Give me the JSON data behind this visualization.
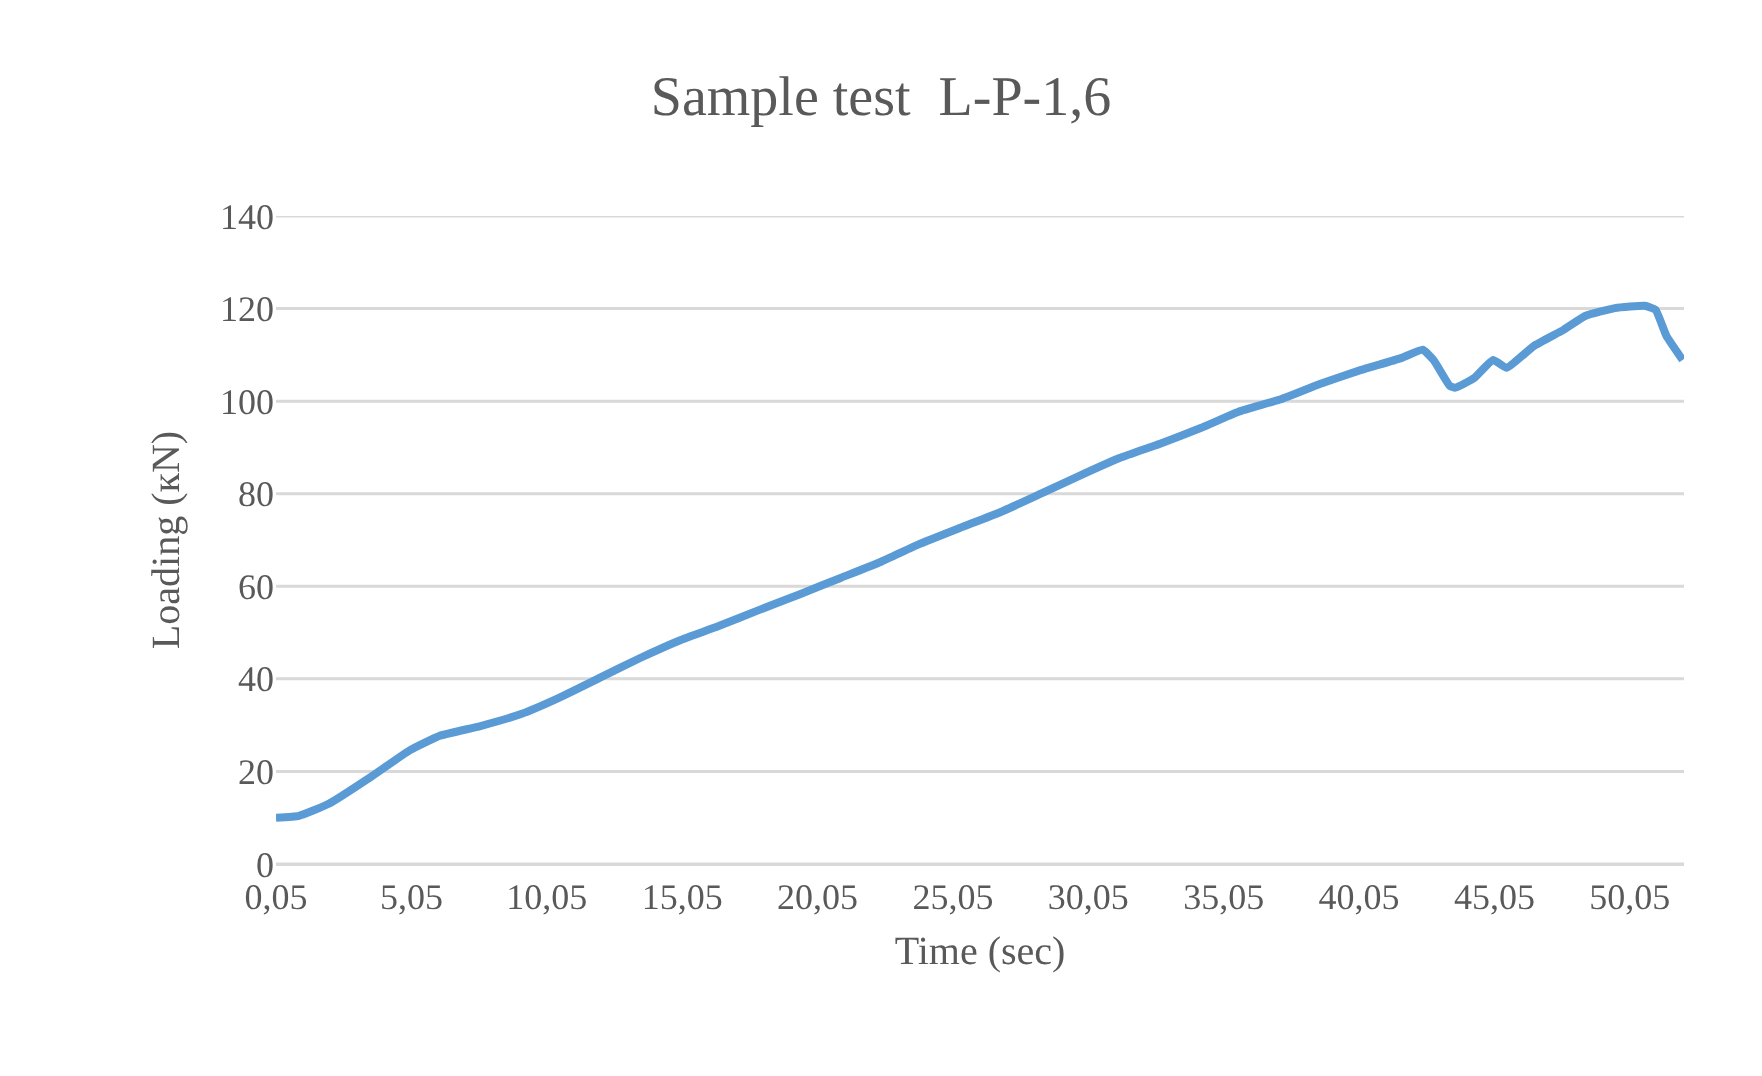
{
  "chart_data": {
    "type": "line",
    "title": "Sample test  L-P-1,6",
    "xlabel": "Time (sec)",
    "ylabel": "Loading (кN)",
    "x": [
      0.05,
      0.9,
      2.0,
      3.5,
      5.0,
      6.1,
      7.6,
      9.1,
      10.5,
      12.0,
      13.5,
      15.0,
      16.4,
      17.9,
      19.4,
      20.9,
      22.4,
      23.8,
      25.3,
      26.8,
      28.3,
      29.7,
      31.2,
      32.7,
      34.2,
      35.6,
      37.1,
      38.6,
      40.1,
      41.6,
      42.4,
      42.8,
      43.4,
      43.6,
      44.3,
      45.0,
      45.5,
      46.5,
      47.6,
      48.4,
      49.5,
      50.6,
      51.0,
      51.4,
      52.0
    ],
    "series": [
      {
        "color": "#5b9bd5",
        "values": [
          10,
          10.4,
          13,
          18.6,
          24.6,
          27.7,
          29.8,
          32.4,
          35.9,
          40.2,
          44.5,
          48.4,
          51.4,
          54.9,
          58.3,
          61.8,
          65.3,
          69.1,
          72.6,
          76,
          80,
          83.8,
          87.7,
          90.8,
          94.2,
          97.7,
          100.3,
          103.7,
          106.7,
          109.3,
          111.1,
          108.9,
          103.3,
          102.9,
          105,
          108.9,
          107.2,
          111.9,
          115.4,
          118.4,
          120.1,
          120.6,
          119.7,
          114.1,
          108.9
        ]
      }
    ],
    "xlim": [
      0.05,
      52.05
    ],
    "xticks": [
      {
        "value": 0.05,
        "label": "0,05"
      },
      {
        "value": 5.05,
        "label": "5,05"
      },
      {
        "value": 10.05,
        "label": "10,05"
      },
      {
        "value": 15.05,
        "label": "15,05"
      },
      {
        "value": 20.05,
        "label": "20,05"
      },
      {
        "value": 25.05,
        "label": "25,05"
      },
      {
        "value": 30.05,
        "label": "30,05"
      },
      {
        "value": 35.05,
        "label": "35,05"
      },
      {
        "value": 40.05,
        "label": "40,05"
      },
      {
        "value": 45.05,
        "label": "45,05"
      },
      {
        "value": 50.05,
        "label": "50,05"
      }
    ],
    "ylim": [
      0,
      140
    ],
    "yticks": [
      0,
      20,
      40,
      60,
      80,
      100,
      120,
      140
    ],
    "grid": "y",
    "marker": "none",
    "line_style": "solid"
  }
}
